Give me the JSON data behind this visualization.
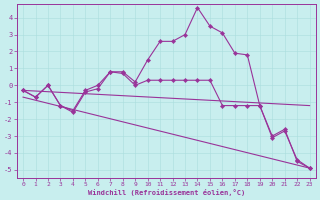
{
  "xlabel": "Windchill (Refroidissement éolien,°C)",
  "background_color": "#c8eeee",
  "line_color": "#993399",
  "grid_color": "#aadddd",
  "xlim_min": -0.5,
  "xlim_max": 23.5,
  "ylim_min": -5.5,
  "ylim_max": 4.8,
  "xticks": [
    0,
    1,
    2,
    3,
    4,
    5,
    6,
    7,
    8,
    9,
    10,
    11,
    12,
    13,
    14,
    15,
    16,
    17,
    18,
    19,
    20,
    21,
    22,
    23
  ],
  "yticks": [
    -5,
    -4,
    -3,
    -2,
    -1,
    0,
    1,
    2,
    3,
    4
  ],
  "line1_x": [
    0,
    1,
    2,
    3,
    4,
    5,
    6,
    7,
    8,
    9,
    10,
    11,
    12,
    13,
    14,
    15,
    16,
    17,
    18,
    19,
    20,
    21,
    22,
    23
  ],
  "line1_y": [
    -0.3,
    -0.7,
    0.0,
    -1.2,
    -1.5,
    -0.3,
    0.0,
    0.8,
    0.8,
    0.2,
    1.5,
    2.6,
    2.6,
    3.0,
    4.6,
    3.5,
    3.1,
    1.9,
    1.8,
    -1.2,
    -3.1,
    -2.7,
    -4.4,
    -4.9
  ],
  "line2_x": [
    0,
    1,
    2,
    3,
    4,
    5,
    6,
    7,
    8,
    9,
    10,
    11,
    12,
    13,
    14,
    15,
    16,
    17,
    18,
    19,
    20,
    21,
    22,
    23
  ],
  "line2_y": [
    -0.3,
    -0.7,
    0.0,
    -1.2,
    -1.6,
    -0.4,
    -0.2,
    0.8,
    0.7,
    0.0,
    0.3,
    0.3,
    0.3,
    0.3,
    0.3,
    0.3,
    -1.2,
    -1.2,
    -1.2,
    -1.2,
    -3.0,
    -2.6,
    -4.5,
    -4.9
  ],
  "line3_x": [
    0,
    23
  ],
  "line3_y": [
    -0.3,
    -1.2
  ],
  "line4_x": [
    0,
    23
  ],
  "line4_y": [
    -0.7,
    -4.9
  ]
}
